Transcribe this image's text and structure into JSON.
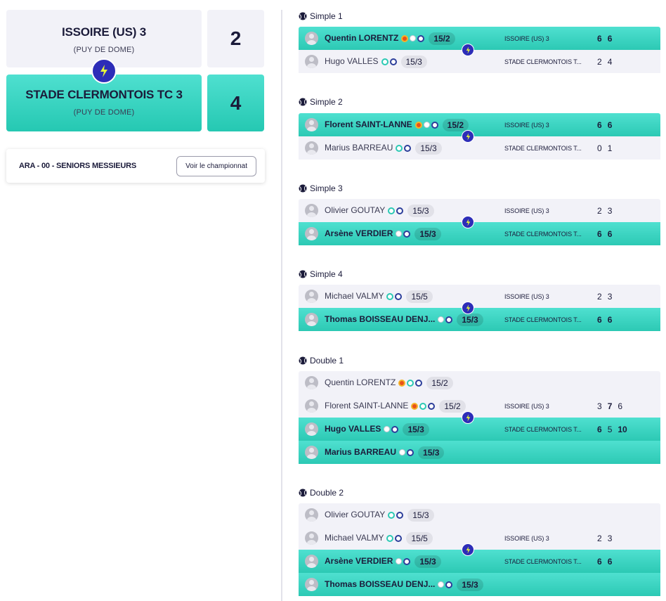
{
  "teams": {
    "home": {
      "name": "ISSOIRE (US) 3",
      "region": "(PUY DE DOME)",
      "score": "2"
    },
    "away": {
      "name": "STADE CLERMONTOIS TC 3",
      "region": "(PUY DE DOME)",
      "score": "4"
    }
  },
  "championship": {
    "title": "ARA - 00 - SENIORS MESSIEURS",
    "button": "Voir le championnat"
  },
  "colors": {
    "accent_win": "#2cc9b4",
    "lose_bg": "#f2f2f8",
    "bolt": "#2d2db8",
    "text": "#1b1b3a"
  },
  "matches": [
    {
      "label": "Simple 1",
      "rows": [
        {
          "name": "Quentin LORENTZ",
          "rank": "15/2",
          "club": "ISSOIRE (US) 3",
          "sets": [
            "6",
            "6"
          ]
        },
        {
          "name": "Hugo VALLES",
          "rank": "15/3",
          "club": "STADE CLERMONTOIS T...",
          "sets": [
            "2",
            "4"
          ]
        }
      ]
    },
    {
      "label": "Simple 2",
      "rows": [
        {
          "name": "Florent SAINT-LANNE",
          "rank": "15/2",
          "club": "ISSOIRE (US) 3",
          "sets": [
            "6",
            "6"
          ]
        },
        {
          "name": "Marius BARREAU",
          "rank": "15/3",
          "club": "STADE CLERMONTOIS T...",
          "sets": [
            "0",
            "1"
          ]
        }
      ]
    },
    {
      "label": "Simple 3",
      "rows": [
        {
          "name": "Olivier GOUTAY",
          "rank": "15/3",
          "club": "ISSOIRE (US) 3",
          "sets": [
            "2",
            "3"
          ]
        },
        {
          "name": "Arsène VERDIER",
          "rank": "15/3",
          "club": "STADE CLERMONTOIS T...",
          "sets": [
            "6",
            "6"
          ]
        }
      ]
    },
    {
      "label": "Simple 4",
      "rows": [
        {
          "name": "Michael VALMY",
          "rank": "15/5",
          "club": "ISSOIRE (US) 3",
          "sets": [
            "2",
            "3"
          ]
        },
        {
          "name": "Thomas BOISSEAU DENJ...",
          "rank": "15/3",
          "club": "STADE CLERMONTOIS T...",
          "sets": [
            "6",
            "6"
          ]
        }
      ]
    },
    {
      "label": "Double 1",
      "rows": [
        {
          "name": "Quentin LORENTZ",
          "rank": "15/2",
          "club": "",
          "sets": []
        },
        {
          "name": "Florent SAINT-LANNE",
          "rank": "15/2",
          "club": "ISSOIRE (US) 3",
          "sets": [
            "3",
            "7",
            "6"
          ]
        },
        {
          "name": "Hugo VALLES",
          "rank": "15/3",
          "club": "STADE CLERMONTOIS T...",
          "sets": [
            "6",
            "5",
            "10"
          ]
        },
        {
          "name": "Marius BARREAU",
          "rank": "15/3",
          "club": "",
          "sets": []
        }
      ]
    },
    {
      "label": "Double 2",
      "rows": [
        {
          "name": "Olivier GOUTAY",
          "rank": "15/3",
          "club": "",
          "sets": []
        },
        {
          "name": "Michael VALMY",
          "rank": "15/5",
          "club": "ISSOIRE (US) 3",
          "sets": [
            "2",
            "3"
          ]
        },
        {
          "name": "Arsène VERDIER",
          "rank": "15/3",
          "club": "STADE CLERMONTOIS T...",
          "sets": [
            "6",
            "6"
          ]
        },
        {
          "name": "Thomas BOISSEAU DENJ...",
          "rank": "15/3",
          "club": "",
          "sets": []
        }
      ]
    }
  ]
}
